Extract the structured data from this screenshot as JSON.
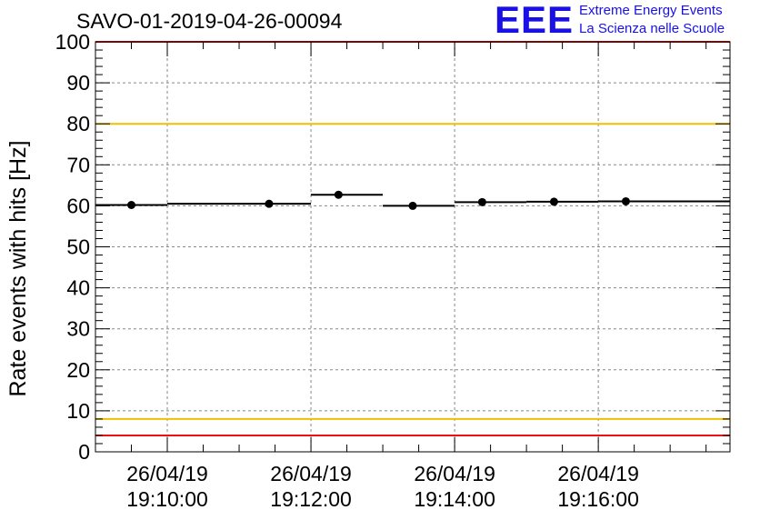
{
  "header": {
    "run_title": "SAVO-01-2019-04-26-00094",
    "logo_mark": "EEE",
    "logo_line1": "Extreme Energy Events",
    "logo_line2": "La Scienza nelle Scuole"
  },
  "chart_data": {
    "type": "scatter",
    "title": "SAVO-01-2019-04-26-00094",
    "ylabel": "Rate events with hits [Hz]",
    "xlabel": "",
    "ylim": [
      0,
      100
    ],
    "xlim": [
      "19:09:00",
      "19:17:50"
    ],
    "grid": true,
    "x_tick_labels": [
      [
        "26/04/19",
        "19:10:00"
      ],
      [
        "26/04/19",
        "19:12:00"
      ],
      [
        "26/04/19",
        "19:14:00"
      ],
      [
        "26/04/19",
        "19:16:00"
      ]
    ],
    "y_tick_labels": [
      "0",
      "10",
      "20",
      "30",
      "40",
      "50",
      "60",
      "70",
      "80",
      "90",
      "100"
    ],
    "series": [
      {
        "values": [
          {
            "x_start": "19:09:00",
            "x_end": "19:10:00",
            "y": 60.2
          },
          {
            "x_start": "19:10:00",
            "x_end": "19:12:00",
            "y": 60.5
          },
          {
            "x_start": "19:12:00",
            "x_end": "19:13:00",
            "y": 62.7
          },
          {
            "x_start": "19:13:00",
            "x_end": "19:14:00",
            "y": 60.0
          },
          {
            "x_start": "19:14:00",
            "x_end": "19:15:00",
            "y": 60.9
          },
          {
            "x_start": "19:15:00",
            "x_end": "19:16:00",
            "y": 61.0
          },
          {
            "x_start": "19:16:00",
            "x_end": "19:17:50",
            "y": 61.1
          }
        ],
        "markers_x": [
          "19:09:30",
          "19:11:25",
          "19:12:23",
          "19:13:25",
          "19:14:23",
          "19:15:23",
          "19:16:23"
        ]
      }
    ],
    "reference_lines": [
      {
        "y": 100,
        "color": "#ee1111"
      },
      {
        "y": 80,
        "color": "#f0c000"
      },
      {
        "y": 8,
        "color": "#f0c000"
      },
      {
        "y": 4,
        "color": "#ee1111"
      }
    ]
  }
}
